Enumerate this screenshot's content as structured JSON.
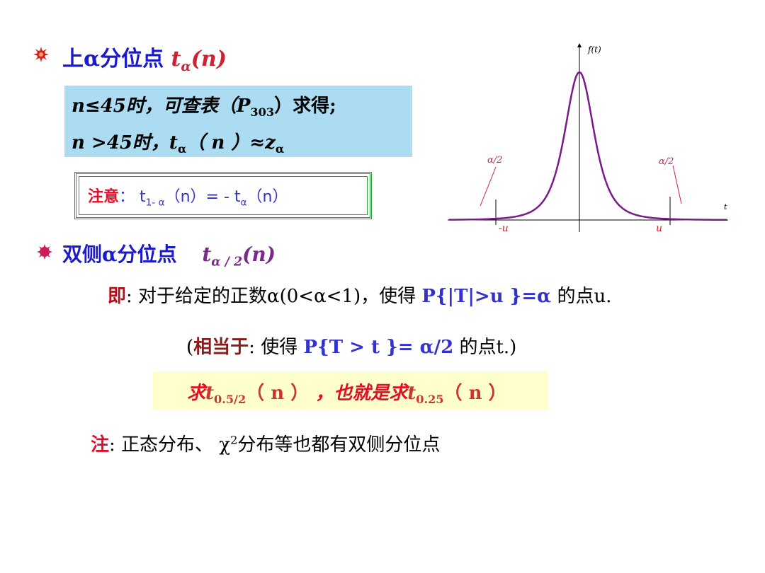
{
  "section1": {
    "title": "上α分位点",
    "var": "t",
    "var_sub": "α",
    "var_arg": "(n)",
    "line1_pre": "n≤45时，可查表（P",
    "line1_sub": "303",
    "line1_post": "）求得;",
    "line2_pre": "n >45时，t",
    "line2_sub": "α",
    "line2_mid": "（ n ）≈z",
    "line2_sub2": "α"
  },
  "note_box": {
    "label": "注意",
    "colon": "：",
    "text_pre": "t",
    "text_sub": "1- α",
    "text_mid": "（n）= - t",
    "text_sub2": "α",
    "text_post": "（n）"
  },
  "section2": {
    "title": "双侧α分位点",
    "var": "t",
    "var_sub": "α / 2",
    "var_arg": "(n)"
  },
  "line3": {
    "label": "即",
    "text1": ": 对于给定的正数α(0<α<1)，使得",
    "formula": "P{|T|>u }=α",
    "text2": "的点u."
  },
  "line4": {
    "open": "(",
    "label": "相当于",
    "text1": ": 使得",
    "formula": "P{T > t }= α/2",
    "text2": "的点t.)"
  },
  "box2": {
    "part1": "求",
    "var1": "t",
    "sub1": "0.5/2",
    "arg1": "（ n ）",
    "part2": "，也就是求",
    "var2": "t",
    "sub2": "0.25",
    "arg2": "（ n ）"
  },
  "line5": {
    "label": "注",
    "text_pre": ": 正态分布、 χ",
    "sup": "2",
    "text_post": "分布等也都有双侧分位点"
  },
  "chart_data": {
    "type": "area",
    "title": "",
    "ylabel": "f(t)",
    "xlabel": "t",
    "curve": "t-distribution density",
    "left_tail_label": "α/2",
    "right_tail_label": "α/2",
    "left_tick": "-u",
    "right_tick": "u",
    "tail_color": "#1e90ff",
    "curve_color": "#7a1a8a"
  }
}
